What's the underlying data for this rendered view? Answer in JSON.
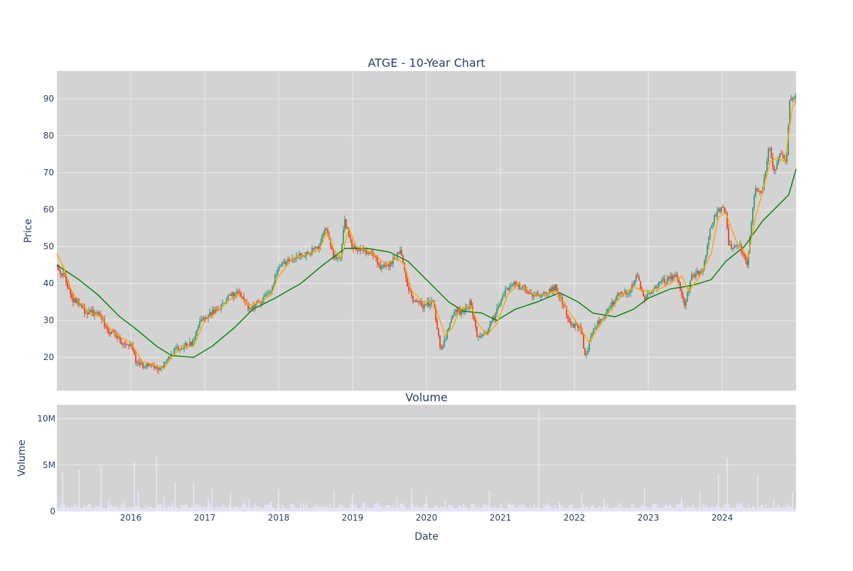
{
  "colors": {
    "plot_bg": "#d3d3d3",
    "grid": "#ebebeb",
    "candle_up": "#3d9970",
    "candle_down": "#e8412c",
    "ma_short": "#ffa500",
    "ma_long": "#008000",
    "volume_bar": "#e6e6fa",
    "text": "#2a3f5f"
  },
  "chart_data": [
    {
      "type": "candlestick",
      "title": "ATGE - 10-Year Chart",
      "ylabel": "Price",
      "ylim": [
        11,
        97.5
      ],
      "yticks": [
        20,
        30,
        40,
        50,
        60,
        70,
        80,
        90
      ],
      "ytick_labels": [
        "20",
        "30",
        "40",
        "50",
        "60",
        "70",
        "80",
        "90"
      ],
      "xlim": [
        2015.0,
        2025.0
      ],
      "grid": true,
      "legend": "none",
      "price_path": [
        [
          2015.0,
          45
        ],
        [
          2015.05,
          43
        ],
        [
          2015.12,
          42
        ],
        [
          2015.2,
          36
        ],
        [
          2015.3,
          35
        ],
        [
          2015.4,
          32
        ],
        [
          2015.5,
          32
        ],
        [
          2015.6,
          31
        ],
        [
          2015.7,
          27
        ],
        [
          2015.8,
          27
        ],
        [
          2015.9,
          23
        ],
        [
          2016.0,
          24
        ],
        [
          2016.1,
          18
        ],
        [
          2016.25,
          18
        ],
        [
          2016.4,
          17
        ],
        [
          2016.5,
          19
        ],
        [
          2016.6,
          22
        ],
        [
          2016.7,
          23
        ],
        [
          2016.85,
          24
        ],
        [
          2016.95,
          30
        ],
        [
          2017.1,
          32
        ],
        [
          2017.2,
          33
        ],
        [
          2017.35,
          37
        ],
        [
          2017.5,
          37
        ],
        [
          2017.6,
          33
        ],
        [
          2017.75,
          35
        ],
        [
          2017.9,
          38
        ],
        [
          2018.0,
          44
        ],
        [
          2018.2,
          47
        ],
        [
          2018.4,
          48
        ],
        [
          2018.55,
          50
        ],
        [
          2018.65,
          55
        ],
        [
          2018.75,
          47
        ],
        [
          2018.85,
          47
        ],
        [
          2018.9,
          57
        ],
        [
          2019.0,
          50
        ],
        [
          2019.15,
          49
        ],
        [
          2019.3,
          48
        ],
        [
          2019.4,
          44
        ],
        [
          2019.55,
          46
        ],
        [
          2019.65,
          49
        ],
        [
          2019.75,
          40
        ],
        [
          2019.82,
          36
        ],
        [
          2019.95,
          34
        ],
        [
          2020.1,
          35
        ],
        [
          2020.2,
          22
        ],
        [
          2020.3,
          27
        ],
        [
          2020.4,
          33
        ],
        [
          2020.5,
          32
        ],
        [
          2020.6,
          35
        ],
        [
          2020.7,
          25
        ],
        [
          2020.8,
          26
        ],
        [
          2020.95,
          32
        ],
        [
          2021.05,
          37
        ],
        [
          2021.15,
          40
        ],
        [
          2021.3,
          39
        ],
        [
          2021.45,
          37
        ],
        [
          2021.6,
          37
        ],
        [
          2021.75,
          39
        ],
        [
          2021.85,
          35
        ],
        [
          2021.95,
          29
        ],
        [
          2022.1,
          28
        ],
        [
          2022.15,
          20
        ],
        [
          2022.3,
          29
        ],
        [
          2022.45,
          32
        ],
        [
          2022.6,
          37
        ],
        [
          2022.75,
          38
        ],
        [
          2022.85,
          42
        ],
        [
          2022.95,
          36
        ],
        [
          2023.1,
          39
        ],
        [
          2023.25,
          41
        ],
        [
          2023.4,
          42
        ],
        [
          2023.5,
          34
        ],
        [
          2023.6,
          42
        ],
        [
          2023.75,
          44
        ],
        [
          2023.85,
          55
        ],
        [
          2023.95,
          60
        ],
        [
          2024.05,
          60
        ],
        [
          2024.1,
          50
        ],
        [
          2024.25,
          50
        ],
        [
          2024.35,
          45
        ],
        [
          2024.45,
          66
        ],
        [
          2024.55,
          65
        ],
        [
          2024.65,
          78
        ],
        [
          2024.7,
          70
        ],
        [
          2024.8,
          75
        ],
        [
          2024.88,
          72
        ],
        [
          2024.92,
          90
        ],
        [
          2025.0,
          91
        ]
      ],
      "ma_short_path": [
        [
          2015.0,
          48
        ],
        [
          2015.1,
          44
        ],
        [
          2015.2,
          38
        ],
        [
          2015.3,
          35
        ],
        [
          2015.45,
          32
        ],
        [
          2015.6,
          31
        ],
        [
          2015.75,
          27
        ],
        [
          2015.9,
          25
        ],
        [
          2016.0,
          24
        ],
        [
          2016.15,
          19
        ],
        [
          2016.3,
          18
        ],
        [
          2016.45,
          17
        ],
        [
          2016.55,
          20
        ],
        [
          2016.7,
          23
        ],
        [
          2016.85,
          23
        ],
        [
          2017.0,
          30
        ],
        [
          2017.15,
          32
        ],
        [
          2017.3,
          35
        ],
        [
          2017.45,
          37
        ],
        [
          2017.6,
          34
        ],
        [
          2017.75,
          35
        ],
        [
          2017.9,
          37
        ],
        [
          2018.0,
          42
        ],
        [
          2018.2,
          47
        ],
        [
          2018.4,
          48
        ],
        [
          2018.55,
          49
        ],
        [
          2018.65,
          54
        ],
        [
          2018.75,
          49
        ],
        [
          2018.85,
          47
        ],
        [
          2018.95,
          55
        ],
        [
          2019.05,
          50
        ],
        [
          2019.2,
          49
        ],
        [
          2019.35,
          47
        ],
        [
          2019.45,
          45
        ],
        [
          2019.6,
          47
        ],
        [
          2019.7,
          45
        ],
        [
          2019.8,
          38
        ],
        [
          2019.95,
          35
        ],
        [
          2020.1,
          35
        ],
        [
          2020.25,
          26
        ],
        [
          2020.35,
          28
        ],
        [
          2020.45,
          33
        ],
        [
          2020.6,
          34
        ],
        [
          2020.7,
          29
        ],
        [
          2020.82,
          26
        ],
        [
          2020.95,
          29
        ],
        [
          2021.1,
          37
        ],
        [
          2021.25,
          40
        ],
        [
          2021.45,
          37
        ],
        [
          2021.6,
          37
        ],
        [
          2021.75,
          38
        ],
        [
          2021.9,
          33
        ],
        [
          2022.05,
          29
        ],
        [
          2022.2,
          24
        ],
        [
          2022.35,
          29
        ],
        [
          2022.5,
          33
        ],
        [
          2022.65,
          37
        ],
        [
          2022.8,
          39
        ],
        [
          2022.95,
          38
        ],
        [
          2023.1,
          38
        ],
        [
          2023.3,
          40
        ],
        [
          2023.45,
          42
        ],
        [
          2023.55,
          38
        ],
        [
          2023.7,
          42
        ],
        [
          2023.85,
          48
        ],
        [
          2023.95,
          58
        ],
        [
          2024.05,
          59
        ],
        [
          2024.2,
          51
        ],
        [
          2024.35,
          47
        ],
        [
          2024.45,
          58
        ],
        [
          2024.55,
          65
        ],
        [
          2024.65,
          73
        ],
        [
          2024.75,
          74
        ],
        [
          2024.85,
          73
        ],
        [
          2024.95,
          88
        ],
        [
          2025.0,
          89
        ]
      ],
      "ma_long_path": [
        [
          2015.0,
          45
        ],
        [
          2015.3,
          41
        ],
        [
          2015.55,
          37
        ],
        [
          2015.85,
          31
        ],
        [
          2016.05,
          28
        ],
        [
          2016.35,
          23
        ],
        [
          2016.55,
          20.5
        ],
        [
          2016.85,
          20
        ],
        [
          2017.1,
          23
        ],
        [
          2017.4,
          28
        ],
        [
          2017.65,
          33
        ],
        [
          2017.95,
          36
        ],
        [
          2018.3,
          40
        ],
        [
          2018.6,
          45
        ],
        [
          2018.9,
          49.5
        ],
        [
          2019.2,
          49.5
        ],
        [
          2019.5,
          48.5
        ],
        [
          2019.75,
          46
        ],
        [
          2020.0,
          41
        ],
        [
          2020.3,
          35
        ],
        [
          2020.5,
          32.5
        ],
        [
          2020.75,
          32
        ],
        [
          2020.95,
          30
        ],
        [
          2021.2,
          33
        ],
        [
          2021.5,
          35
        ],
        [
          2021.8,
          37.5
        ],
        [
          2022.05,
          35
        ],
        [
          2022.25,
          32
        ],
        [
          2022.55,
          31
        ],
        [
          2022.8,
          33
        ],
        [
          2023.0,
          36
        ],
        [
          2023.3,
          38.5
        ],
        [
          2023.6,
          39.5
        ],
        [
          2023.85,
          41
        ],
        [
          2024.05,
          46
        ],
        [
          2024.3,
          50
        ],
        [
          2024.55,
          57
        ],
        [
          2024.8,
          62
        ],
        [
          2024.9,
          64
        ],
        [
          2025.0,
          71
        ]
      ]
    },
    {
      "type": "bar",
      "title": "Volume",
      "xlabel": "Date",
      "ylabel": "Volume",
      "ylim": [
        0,
        11500000
      ],
      "yticks": [
        0,
        5000000,
        10000000
      ],
      "ytick_labels": [
        "0",
        "5M",
        "10M"
      ],
      "xlim": [
        2015.0,
        2025.0
      ],
      "xticks": [
        2016,
        2017,
        2018,
        2019,
        2020,
        2021,
        2022,
        2023,
        2024
      ],
      "xtick_labels": [
        "2016",
        "2017",
        "2018",
        "2019",
        "2020",
        "2021",
        "2022",
        "2023",
        "2024"
      ],
      "grid": true,
      "volume_points": [
        [
          2015.0,
          1000000
        ],
        [
          2015.08,
          4200000
        ],
        [
          2015.3,
          4500000
        ],
        [
          2015.45,
          900000
        ],
        [
          2015.6,
          4900000
        ],
        [
          2015.7,
          1200000
        ],
        [
          2015.9,
          1100000
        ],
        [
          2016.05,
          5300000
        ],
        [
          2016.1,
          2200000
        ],
        [
          2016.35,
          5900000
        ],
        [
          2016.45,
          1600000
        ],
        [
          2016.6,
          3100000
        ],
        [
          2016.85,
          3000000
        ],
        [
          2017.05,
          1500000
        ],
        [
          2017.1,
          2600000
        ],
        [
          2017.35,
          2100000
        ],
        [
          2017.6,
          1400000
        ],
        [
          2017.9,
          1100000
        ],
        [
          2018.0,
          2400000
        ],
        [
          2018.3,
          900000
        ],
        [
          2018.6,
          700000
        ],
        [
          2018.75,
          2300000
        ],
        [
          2019.0,
          1900000
        ],
        [
          2019.3,
          800000
        ],
        [
          2019.6,
          1500000
        ],
        [
          2019.8,
          2600000
        ],
        [
          2020.0,
          1800000
        ],
        [
          2020.25,
          1300000
        ],
        [
          2020.5,
          900000
        ],
        [
          2020.85,
          2300000
        ],
        [
          2021.0,
          900000
        ],
        [
          2021.3,
          700000
        ],
        [
          2021.52,
          11000000
        ],
        [
          2021.8,
          1000000
        ],
        [
          2022.1,
          1900000
        ],
        [
          2022.4,
          1400000
        ],
        [
          2022.6,
          900000
        ],
        [
          2022.95,
          2400000
        ],
        [
          2023.3,
          800000
        ],
        [
          2023.45,
          1600000
        ],
        [
          2023.7,
          2200000
        ],
        [
          2023.85,
          600000
        ],
        [
          2023.95,
          4000000
        ],
        [
          2024.07,
          5800000
        ],
        [
          2024.2,
          900000
        ],
        [
          2024.48,
          3800000
        ],
        [
          2024.7,
          1200000
        ],
        [
          2024.95,
          2100000
        ]
      ]
    }
  ]
}
